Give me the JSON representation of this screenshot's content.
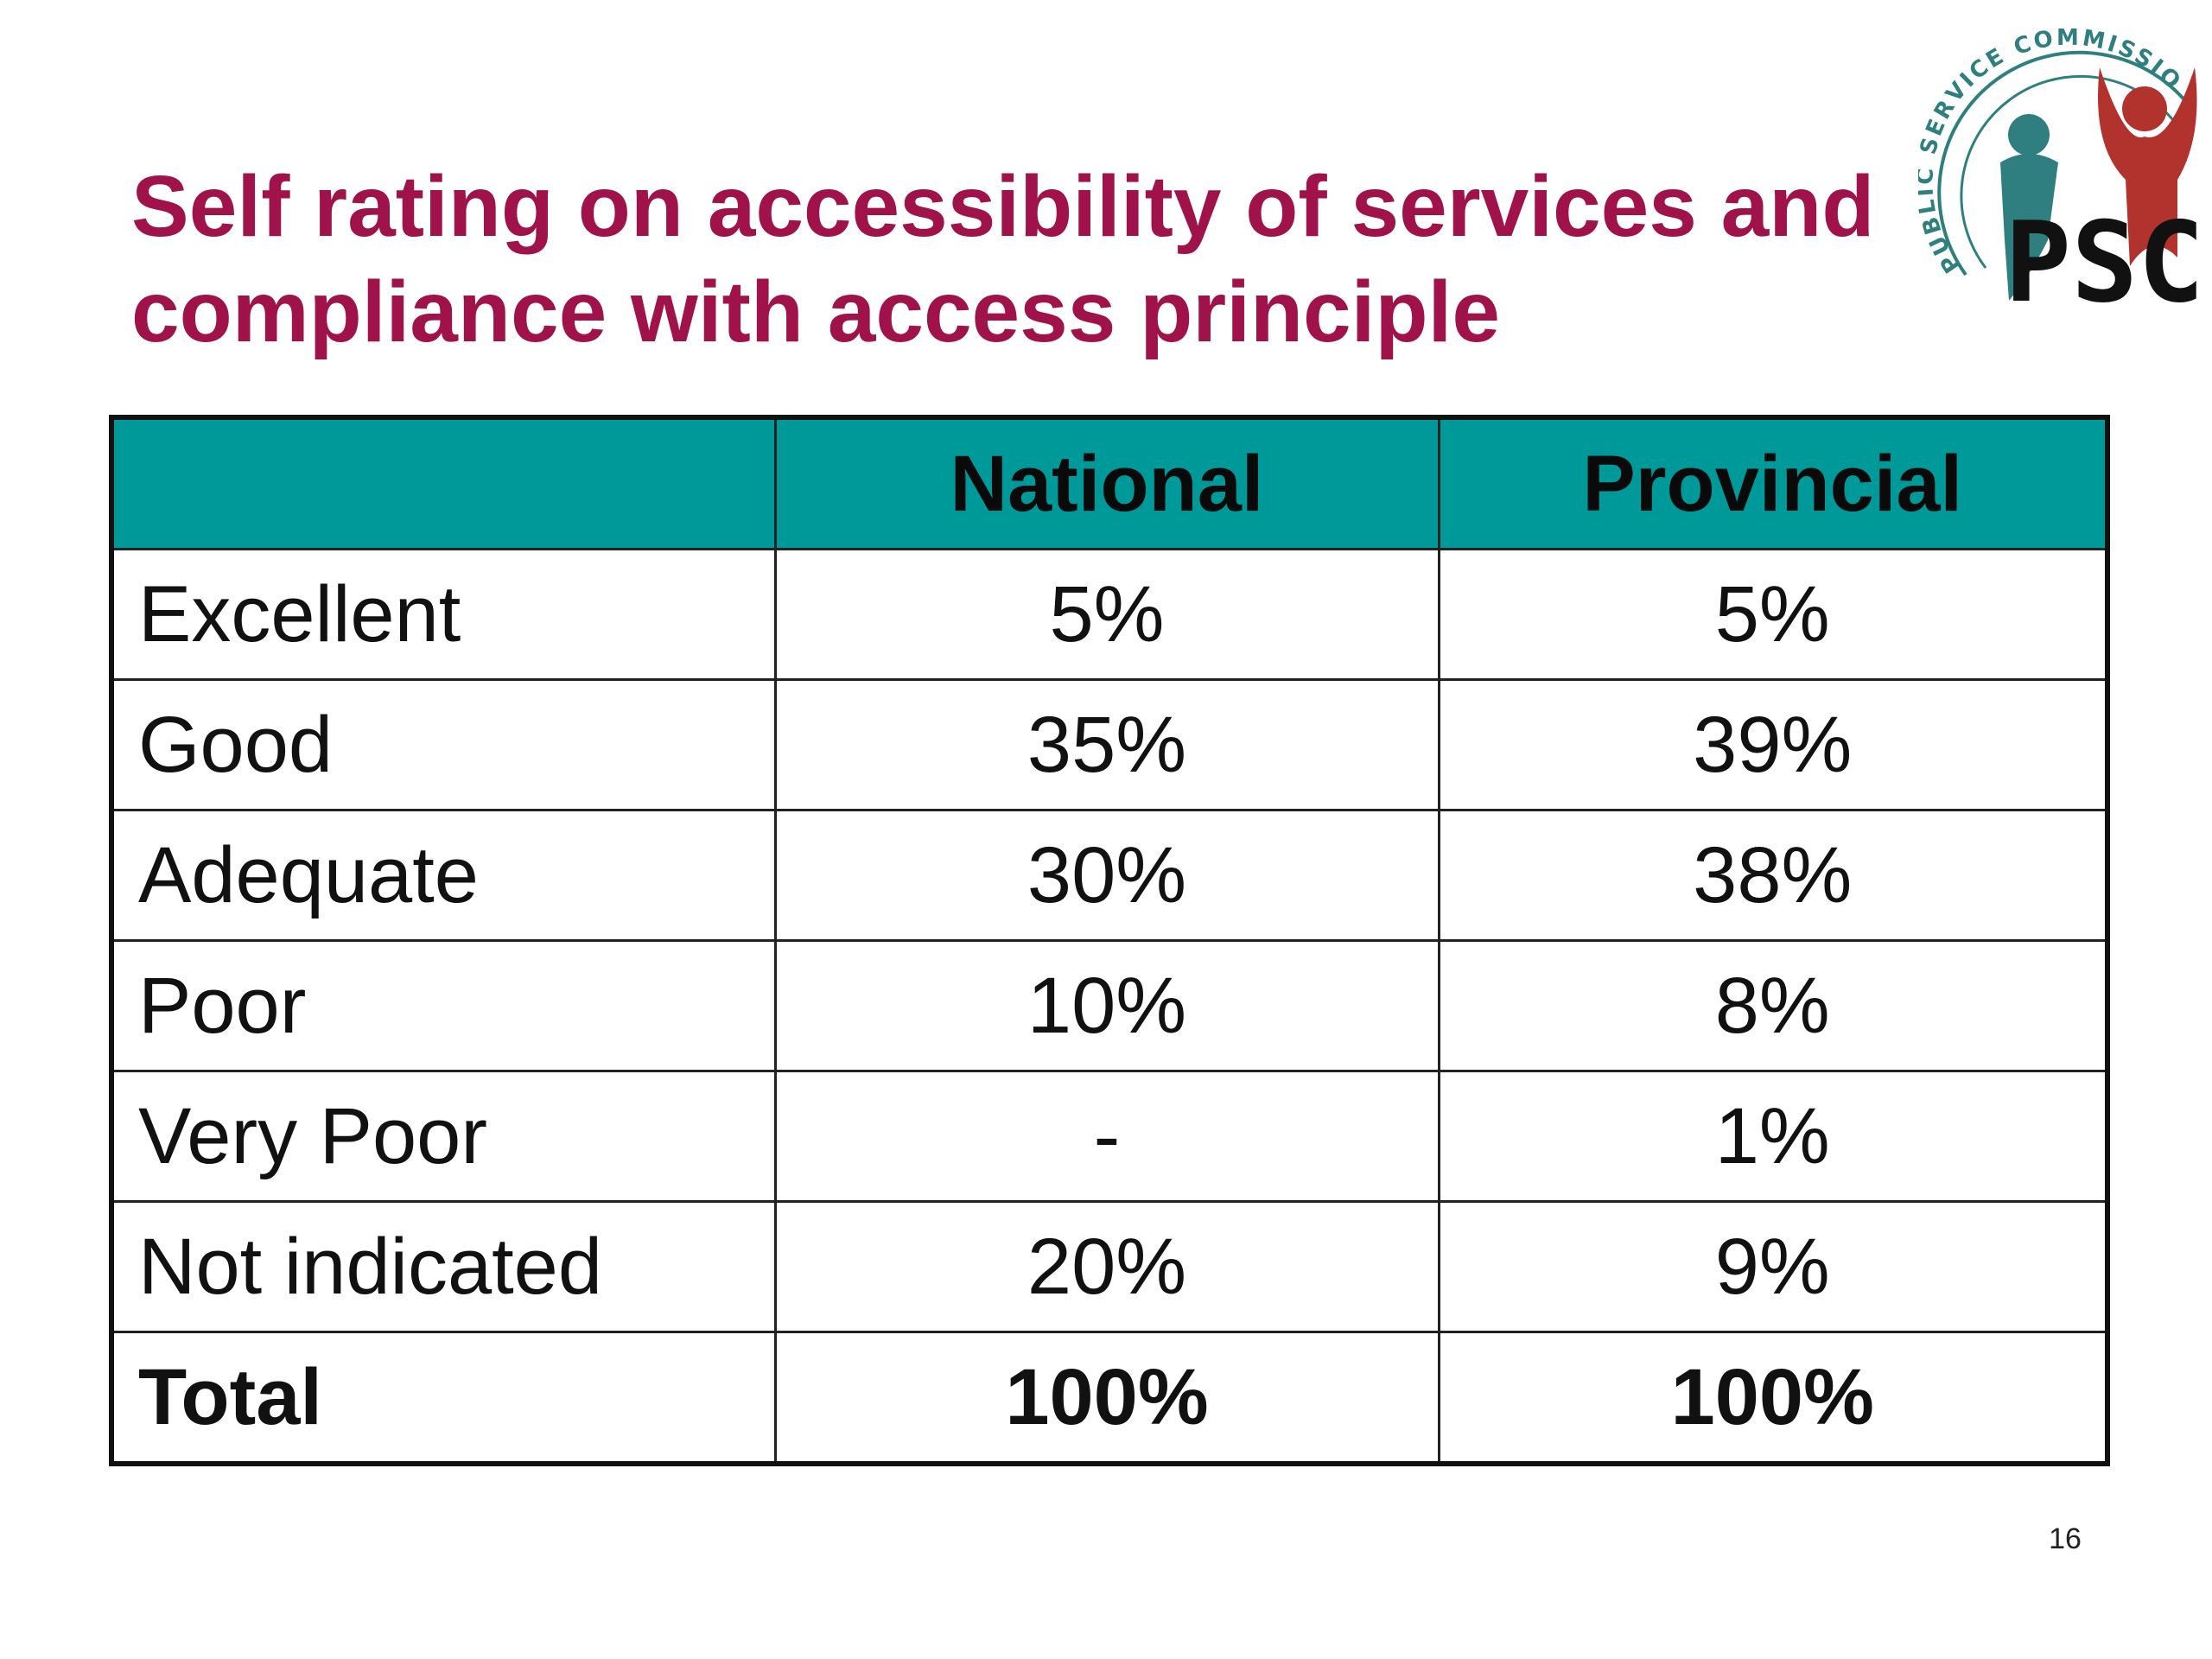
{
  "slide": {
    "title_line1": "Self rating on accessibility of services and",
    "title_line2": "compliance with access principle",
    "title_color": "#a0124a",
    "page_number": "16"
  },
  "logo": {
    "ring_text": "PUBLIC SERVICE COMMISSION",
    "letters": "PSC",
    "colors": {
      "ring": "#2e7f7f",
      "teal_figure": "#2f7f80",
      "red_figure": "#b2332e",
      "letters": "#111111"
    }
  },
  "table": {
    "header_color": "#009999",
    "columns": [
      "",
      "National",
      "Provincial"
    ],
    "rows": [
      {
        "label": "Excellent",
        "national": "5%",
        "provincial": "5%"
      },
      {
        "label": "Good",
        "national": "35%",
        "provincial": "39%"
      },
      {
        "label": "Adequate",
        "national": "30%",
        "provincial": "38%"
      },
      {
        "label": "Poor",
        "national": "10%",
        "provincial": "8%"
      },
      {
        "label": "Very Poor",
        "national": "-",
        "provincial": "1%"
      },
      {
        "label": "Not indicated",
        "national": "20%",
        "provincial": "9%"
      }
    ],
    "total": {
      "label": "Total",
      "national": "100%",
      "provincial": "100%"
    }
  }
}
